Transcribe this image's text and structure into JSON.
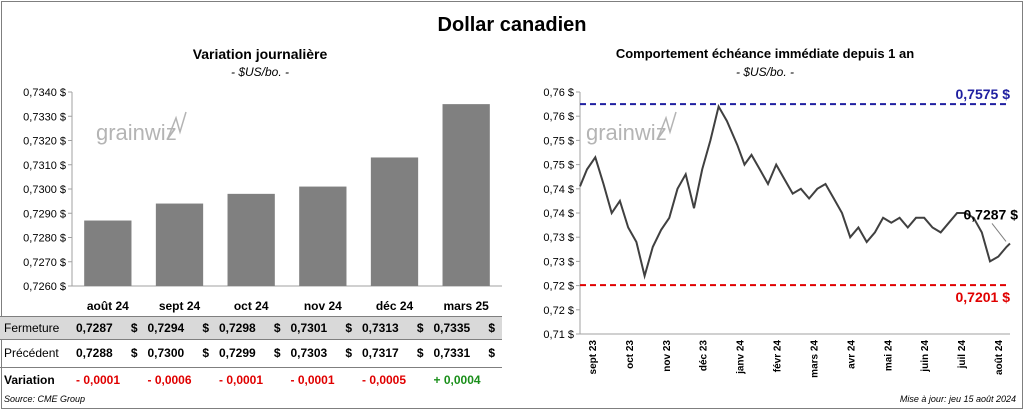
{
  "title": "Dollar canadien",
  "left_panel": {
    "title": "Variation  journalière",
    "unit": "- $US/bo. -",
    "logo": "grainwiz"
  },
  "right_panel": {
    "title": "Comportement échéance immédiate depuis 1 an",
    "unit": "- $US/bo. -",
    "logo": "grainwiz"
  },
  "table": {
    "rows": [
      {
        "label": "Fermeture",
        "values": [
          "0,7287",
          "0,7294",
          "0,7298",
          "0,7301",
          "0,7313",
          "0,7335"
        ],
        "unit": "$"
      },
      {
        "label": "Précédent",
        "values": [
          "0,7288",
          "0,7300",
          "0,7299",
          "0,7303",
          "0,7317",
          "0,7331"
        ],
        "unit": "$"
      },
      {
        "label": "Variation",
        "values": [
          "- 0,0001",
          "- 0,0006",
          "- 0,0001",
          "- 0,0001",
          "- 0,0005",
          "+ 0,0004"
        ]
      }
    ]
  },
  "colors": {
    "bar": "#808080",
    "line": "#404040",
    "max_line": "#1f1fa0",
    "min_line": "#e00000",
    "negative": "#e00000",
    "positive": "#1a8f1a"
  },
  "footer": {
    "source": "Source: CME Group",
    "updated": "Mise à jour: jeu 15 août 2024"
  },
  "chart_data": [
    {
      "type": "bar",
      "categories": [
        "août 24",
        "sept 24",
        "oct 24",
        "nov 24",
        "déc 24",
        "mars 25"
      ],
      "values": [
        0.7287,
        0.7294,
        0.7298,
        0.7301,
        0.7313,
        0.7335
      ],
      "ylim": [
        0.726,
        0.734
      ],
      "yticks": [
        "0,7260 $",
        "0,7270 $",
        "0,7280 $",
        "0,7290 $",
        "0,7300 $",
        "0,7310 $",
        "0,7320 $",
        "0,7330 $",
        "0,7340 $"
      ],
      "grid": false
    },
    {
      "type": "line",
      "x_labels": [
        "sept 23",
        "oct 23",
        "nov 23",
        "déc 23",
        "janv 24",
        "févr 24",
        "mars 24",
        "avr 24",
        "mai 24",
        "juin 24",
        "juil 24",
        "août 24"
      ],
      "x": [
        "2023-08-15",
        "2023-08-21",
        "2023-08-28",
        "2023-09-04",
        "2023-09-11",
        "2023-09-18",
        "2023-09-25",
        "2023-10-02",
        "2023-10-09",
        "2023-10-16",
        "2023-10-23",
        "2023-10-30",
        "2023-11-06",
        "2023-11-13",
        "2023-11-20",
        "2023-11-27",
        "2023-12-04",
        "2023-12-11",
        "2023-12-18",
        "2023-12-27",
        "2024-01-02",
        "2024-01-08",
        "2024-01-15",
        "2024-01-22",
        "2024-01-29",
        "2024-02-05",
        "2024-02-12",
        "2024-02-19",
        "2024-02-26",
        "2024-03-04",
        "2024-03-11",
        "2024-03-18",
        "2024-03-25",
        "2024-04-01",
        "2024-04-08",
        "2024-04-15",
        "2024-04-22",
        "2024-04-29",
        "2024-05-06",
        "2024-05-13",
        "2024-05-20",
        "2024-05-27",
        "2024-06-03",
        "2024-06-10",
        "2024-06-17",
        "2024-06-24",
        "2024-07-01",
        "2024-07-08",
        "2024-07-15",
        "2024-07-22",
        "2024-07-29",
        "2024-08-05",
        "2024-08-12",
        "2024-08-15"
      ],
      "values": [
        0.7405,
        0.744,
        0.7465,
        0.741,
        0.735,
        0.7375,
        0.732,
        0.729,
        0.722,
        0.728,
        0.7315,
        0.734,
        0.74,
        0.743,
        0.736,
        0.744,
        0.75,
        0.757,
        0.754,
        0.749,
        0.745,
        0.747,
        0.744,
        0.741,
        0.745,
        0.742,
        0.739,
        0.74,
        0.738,
        0.74,
        0.741,
        0.738,
        0.735,
        0.73,
        0.732,
        0.729,
        0.731,
        0.734,
        0.733,
        0.734,
        0.732,
        0.734,
        0.734,
        0.732,
        0.731,
        0.733,
        0.735,
        0.735,
        0.734,
        0.731,
        0.725,
        0.726,
        0.728,
        0.7287
      ],
      "ylim": [
        0.71,
        0.76
      ],
      "yticks": [
        "0,71 $",
        "0,72 $",
        "0,72 $",
        "0,73 $",
        "0,73 $",
        "0,74 $",
        "0,74 $",
        "0,75 $",
        "0,75 $",
        "0,76 $",
        "0,76 $"
      ],
      "max_value": 0.7575,
      "min_value": 0.7201,
      "max_label": "0,7575 $",
      "min_label": "0,7201 $",
      "last_label": "0,7287 $"
    }
  ]
}
